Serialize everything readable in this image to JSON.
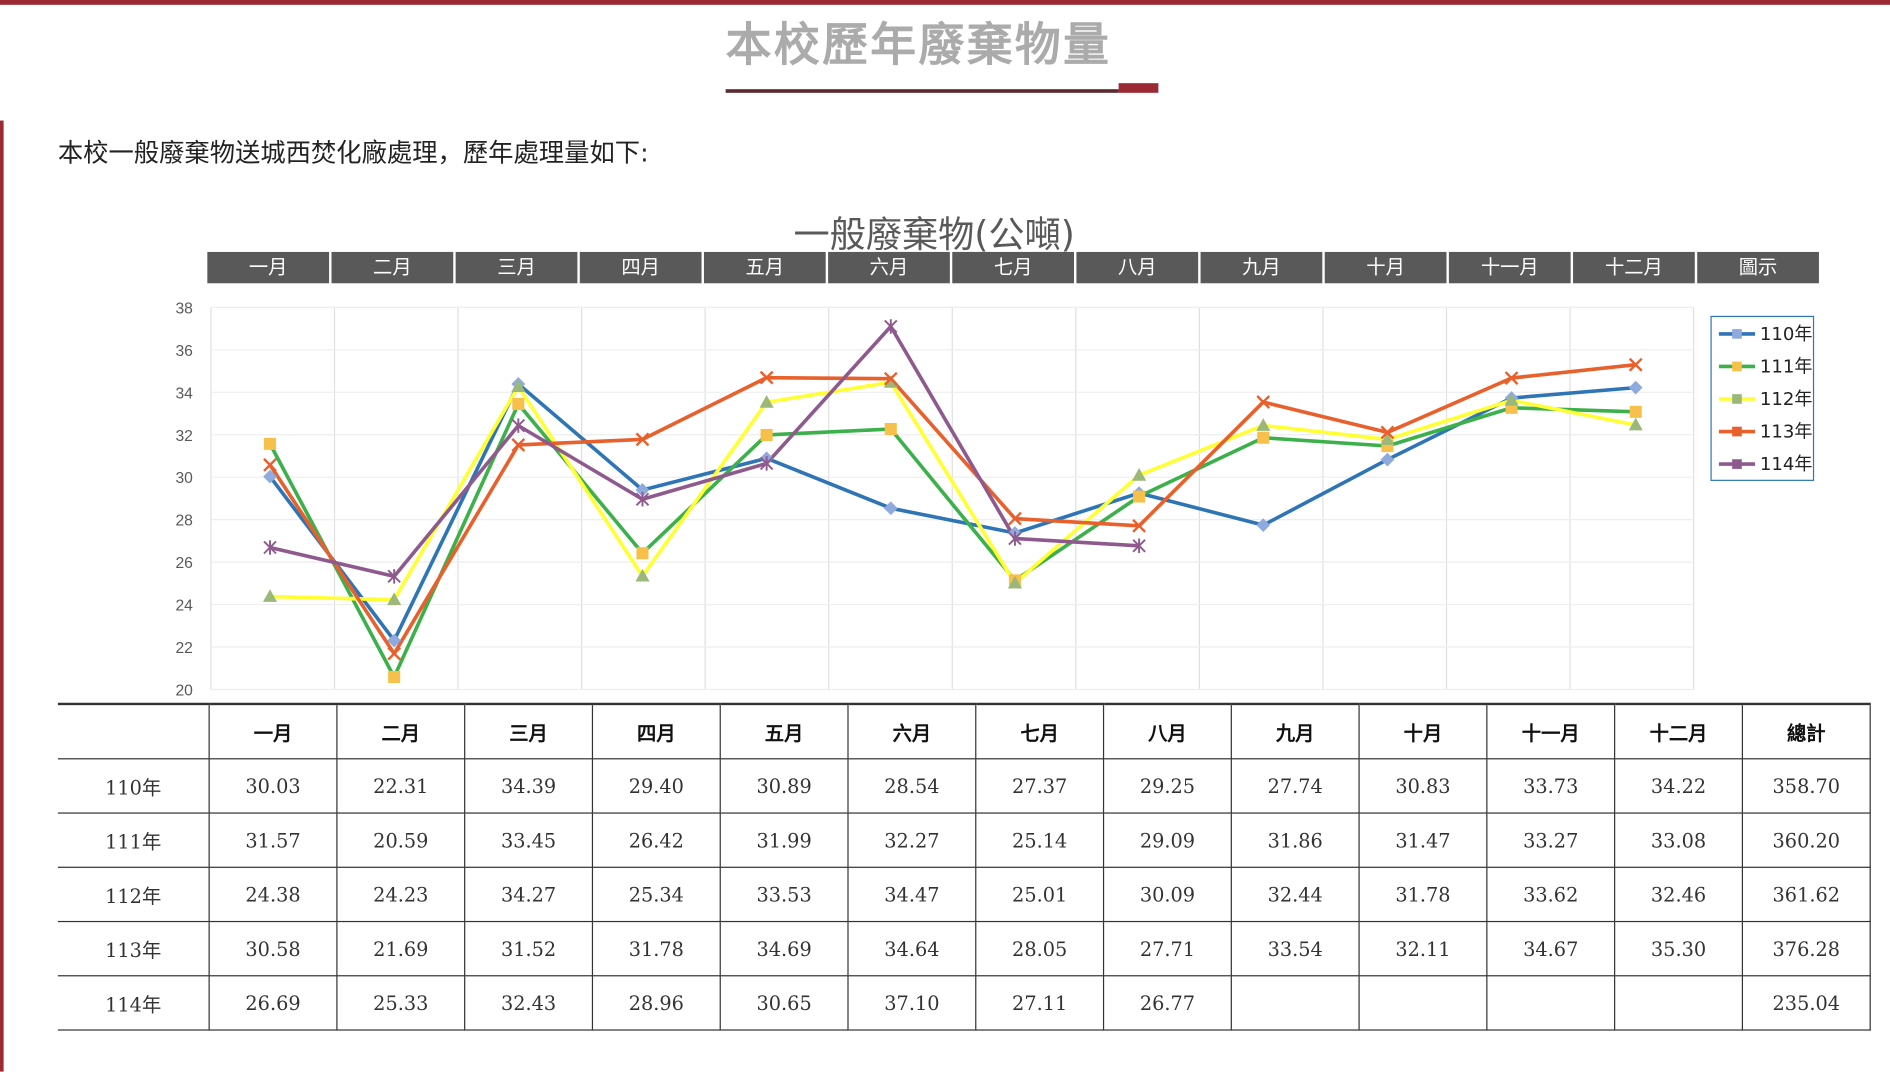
{
  "page": {
    "title": "本校歷年廢棄物量",
    "intro": "本校一般廢棄物送城西焚化廠處理，歷年處理量如下:"
  },
  "chart_data": {
    "type": "line",
    "title": "一般廢棄物(公噸)",
    "categories": [
      "一月",
      "二月",
      "三月",
      "四月",
      "五月",
      "六月",
      "七月",
      "八月",
      "九月",
      "十月",
      "十一月",
      "十二月"
    ],
    "header_extra": "圖示",
    "ylim": [
      20,
      38
    ],
    "yticks": [
      20,
      22,
      24,
      26,
      28,
      30,
      32,
      34,
      36,
      38
    ],
    "grid": true,
    "legend_position": "right",
    "series": [
      {
        "name": "110年",
        "color": "#2e75b6",
        "marker": "diamond",
        "marker_color": "#8faadc",
        "values": [
          30.03,
          22.31,
          34.39,
          29.4,
          30.89,
          28.54,
          27.37,
          29.25,
          27.74,
          30.83,
          33.73,
          34.22
        ]
      },
      {
        "name": "111年",
        "color": "#3cb04a",
        "marker": "square",
        "marker_color": "#f7c04a",
        "values": [
          31.57,
          20.59,
          33.45,
          26.42,
          31.99,
          32.27,
          25.14,
          29.09,
          31.86,
          31.47,
          33.27,
          33.08
        ]
      },
      {
        "name": "112年",
        "color": "#ffff33",
        "marker": "triangle",
        "marker_color": "#9bb87a",
        "values": [
          24.38,
          24.23,
          34.27,
          25.34,
          33.53,
          34.47,
          25.01,
          30.09,
          32.44,
          31.78,
          33.62,
          32.46
        ]
      },
      {
        "name": "113年",
        "color": "#e8602c",
        "marker": "x",
        "marker_color": "#e8602c",
        "values": [
          30.58,
          21.69,
          31.52,
          31.78,
          34.69,
          34.64,
          28.05,
          27.71,
          33.54,
          32.11,
          34.67,
          35.3
        ]
      },
      {
        "name": "114年",
        "color": "#8e5a8e",
        "marker": "star",
        "marker_color": "#8e5a8e",
        "values": [
          26.69,
          25.33,
          32.43,
          28.96,
          30.65,
          37.1,
          27.11,
          26.77,
          null,
          null,
          null,
          null
        ]
      }
    ]
  },
  "table": {
    "headers": [
      "",
      "一月",
      "二月",
      "三月",
      "四月",
      "五月",
      "六月",
      "七月",
      "八月",
      "九月",
      "十月",
      "十一月",
      "十二月",
      "總計"
    ],
    "rows": [
      [
        "110年",
        "30.03",
        "22.31",
        "34.39",
        "29.40",
        "30.89",
        "28.54",
        "27.37",
        "29.25",
        "27.74",
        "30.83",
        "33.73",
        "34.22",
        "358.70"
      ],
      [
        "111年",
        "31.57",
        "20.59",
        "33.45",
        "26.42",
        "31.99",
        "32.27",
        "25.14",
        "29.09",
        "31.86",
        "31.47",
        "33.27",
        "33.08",
        "360.20"
      ],
      [
        "112年",
        "24.38",
        "24.23",
        "34.27",
        "25.34",
        "33.53",
        "34.47",
        "25.01",
        "30.09",
        "32.44",
        "31.78",
        "33.62",
        "32.46",
        "361.62"
      ],
      [
        "113年",
        "30.58",
        "21.69",
        "31.52",
        "31.78",
        "34.69",
        "34.64",
        "28.05",
        "27.71",
        "33.54",
        "32.11",
        "34.67",
        "35.30",
        "376.28"
      ],
      [
        "114年",
        "26.69",
        "25.33",
        "32.43",
        "28.96",
        "30.65",
        "37.10",
        "27.11",
        "26.77",
        "",
        "",
        "",
        "",
        "235.04"
      ]
    ]
  }
}
